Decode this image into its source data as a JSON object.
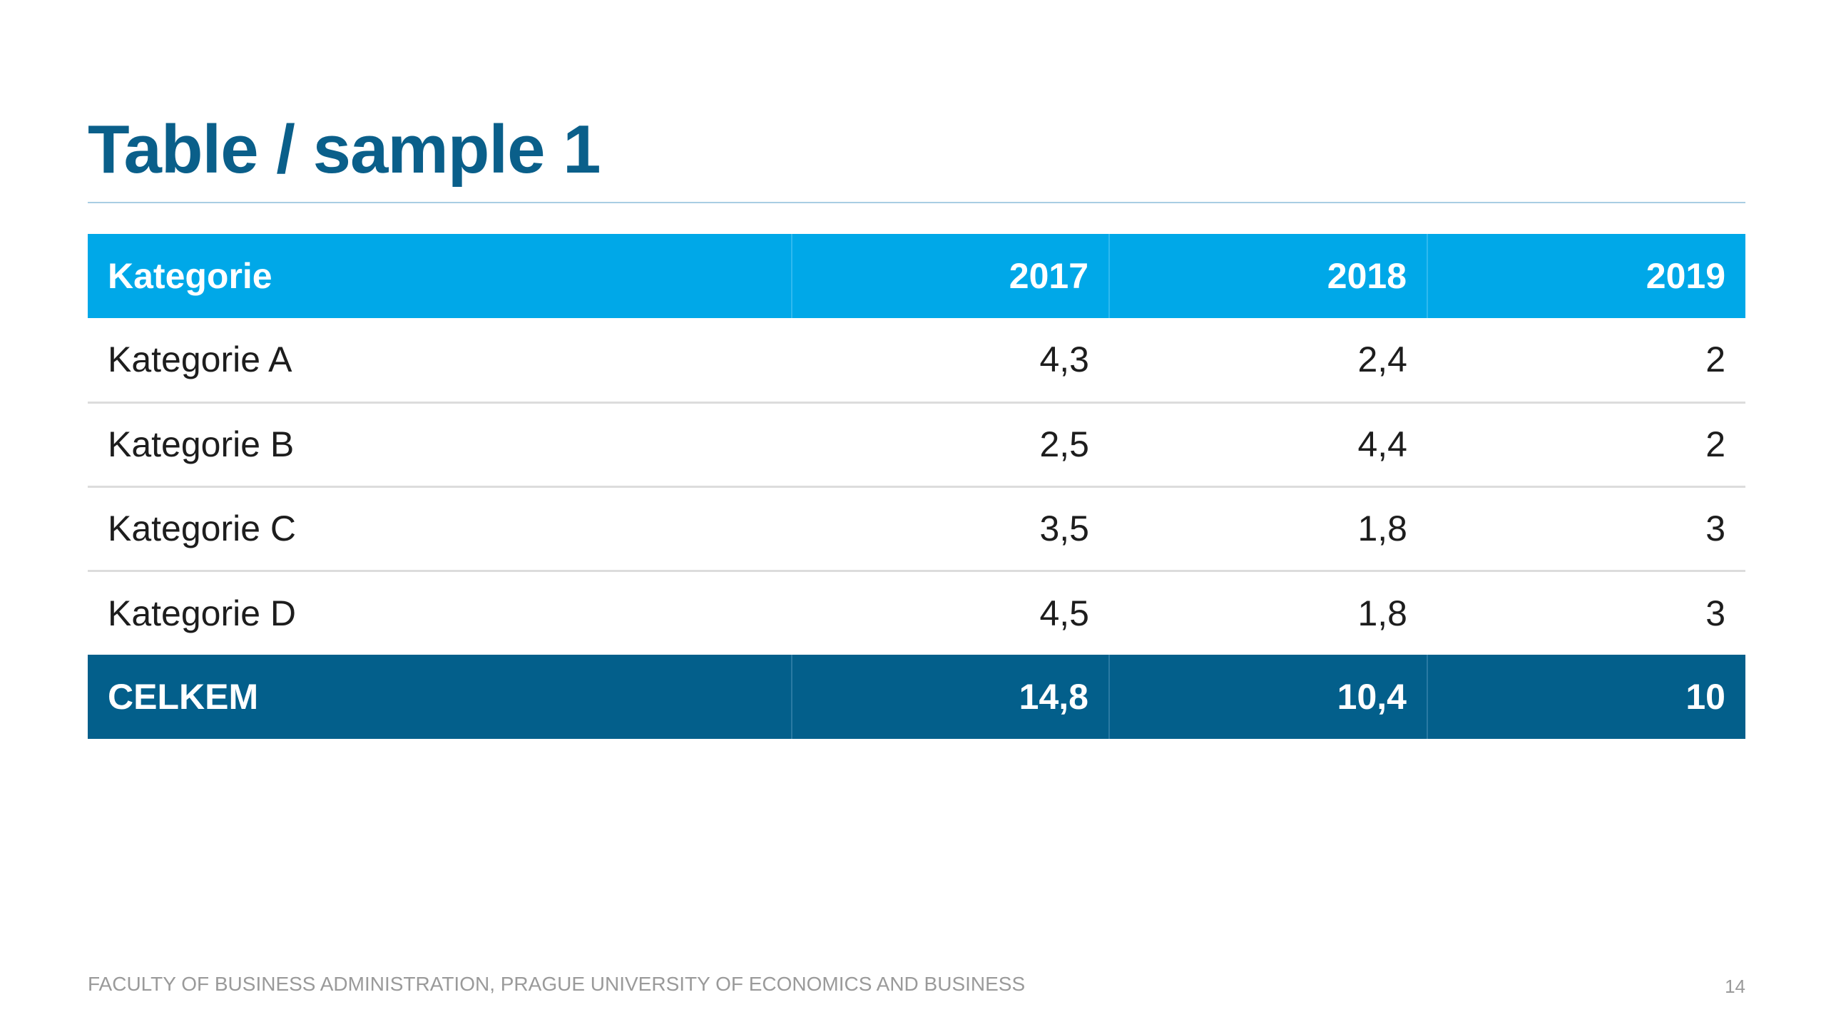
{
  "slide": {
    "title": "Table / sample 1",
    "footer": "FACULTY OF BUSINESS ADMINISTRATION, PRAGUE UNIVERSITY OF ECONOMICS AND BUSINESS",
    "page_number": "14"
  },
  "table": {
    "headers": [
      "Kategorie",
      "2017",
      "2018",
      "2019"
    ],
    "rows": [
      [
        "Kategorie A",
        "4,3",
        "2,4",
        "2"
      ],
      [
        "Kategorie B",
        "2,5",
        "4,4",
        "2"
      ],
      [
        "Kategorie C",
        "3,5",
        "1,8",
        "3"
      ],
      [
        "Kategorie D",
        "4,5",
        "1,8",
        "3"
      ]
    ],
    "total": [
      "CELKEM",
      "14,8",
      "10,4",
      "10"
    ]
  },
  "colors": {
    "title": "#0a5f8a",
    "header_background": "#00a8e8",
    "total_background": "#035f8b",
    "row_divider": "#dcdcdc"
  }
}
